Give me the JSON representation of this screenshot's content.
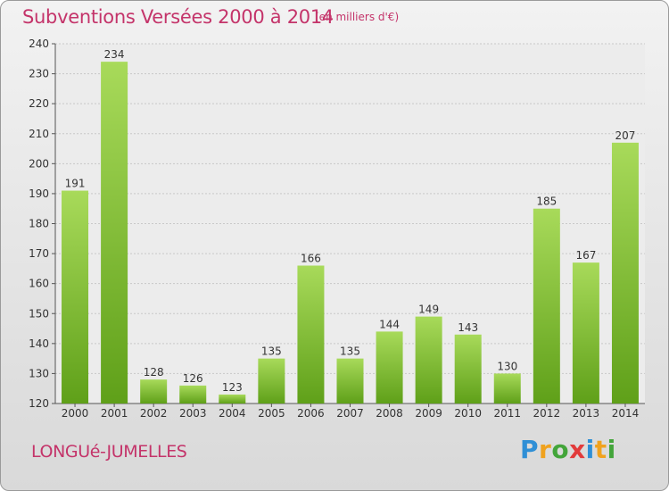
{
  "chart_data": {
    "type": "bar",
    "title": "Subventions Versées 2000 à 2014",
    "subtitle": "(en milliers d'€)",
    "categories": [
      "2000",
      "2001",
      "2002",
      "2003",
      "2004",
      "2005",
      "2006",
      "2007",
      "2008",
      "2009",
      "2010",
      "2011",
      "2012",
      "2013",
      "2014"
    ],
    "values": [
      191,
      234,
      128,
      126,
      123,
      135,
      166,
      135,
      144,
      149,
      143,
      130,
      185,
      167,
      207
    ],
    "yticks": [
      120,
      130,
      140,
      150,
      160,
      170,
      180,
      190,
      200,
      210,
      220,
      230,
      240
    ],
    "ylim": [
      120,
      240
    ],
    "grid": true,
    "bar_color_top": "#a8da5a",
    "bar_color_bottom": "#5fa019"
  },
  "commune": "LONGUé-JUMELLES",
  "logo": {
    "letters": [
      "P",
      "r",
      "o",
      "x",
      "i",
      "t",
      "i"
    ],
    "colors": [
      "#2f8fd6",
      "#f0a21e",
      "#43a53a",
      "#e23b3b",
      "#2f8fd6",
      "#f0a21e",
      "#43a53a"
    ]
  }
}
